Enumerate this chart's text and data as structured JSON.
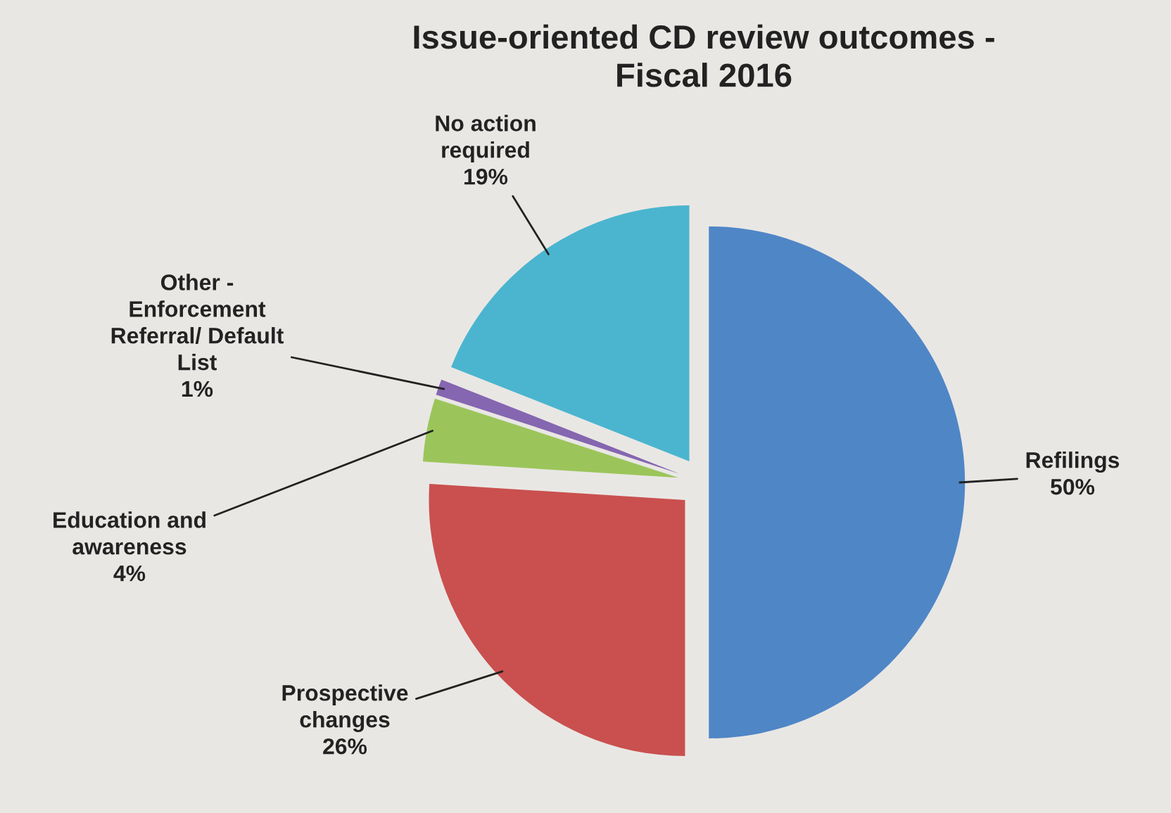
{
  "chart_data": {
    "type": "pie",
    "title": "Issue-oriented CD review outcomes - Fiscal 2016",
    "categories": [
      "Refilings",
      "Prospective changes",
      "Education and awareness",
      "Other - Enforcement Referral/ Default List",
      "No action required"
    ],
    "values": [
      50,
      26,
      4,
      1,
      19
    ],
    "value_labels": [
      "50%",
      "26%",
      "4%",
      "1%",
      "19%"
    ],
    "colors": [
      "#4f86c6",
      "#c9504f",
      "#9bc55a",
      "#8566b0",
      "#4bb5cf"
    ],
    "legend": false
  }
}
